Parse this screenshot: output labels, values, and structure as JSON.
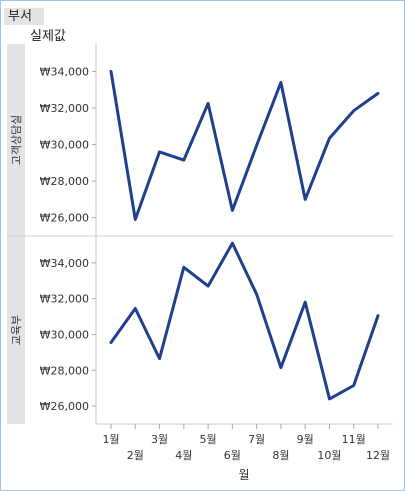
{
  "header": {
    "dimension_pill": "부서",
    "measure_label": "실제값"
  },
  "chart_data": {
    "type": "line",
    "xlabel": "월",
    "categories": [
      "1월",
      "2월",
      "3월",
      "4월",
      "5월",
      "6월",
      "7월",
      "8월",
      "9월",
      "10월",
      "11월",
      "12월"
    ],
    "ylim": [
      25000,
      35500
    ],
    "yticks": [
      "₩26,000",
      "₩28,000",
      "₩30,000",
      "₩32,000",
      "₩34,000"
    ],
    "ytick_values": [
      26000,
      28000,
      30000,
      32000,
      34000
    ],
    "line_color": "#1f3f8f",
    "panels": [
      {
        "name": "고객상담실",
        "values": [
          34000,
          25900,
          29600,
          29150,
          32250,
          26400,
          29950,
          33400,
          27000,
          30350,
          31850,
          32800
        ]
      },
      {
        "name": "교육부",
        "values": [
          29550,
          31450,
          28650,
          33750,
          32700,
          35100,
          32250,
          28150,
          31800,
          26400,
          27150,
          31050
        ]
      }
    ]
  }
}
